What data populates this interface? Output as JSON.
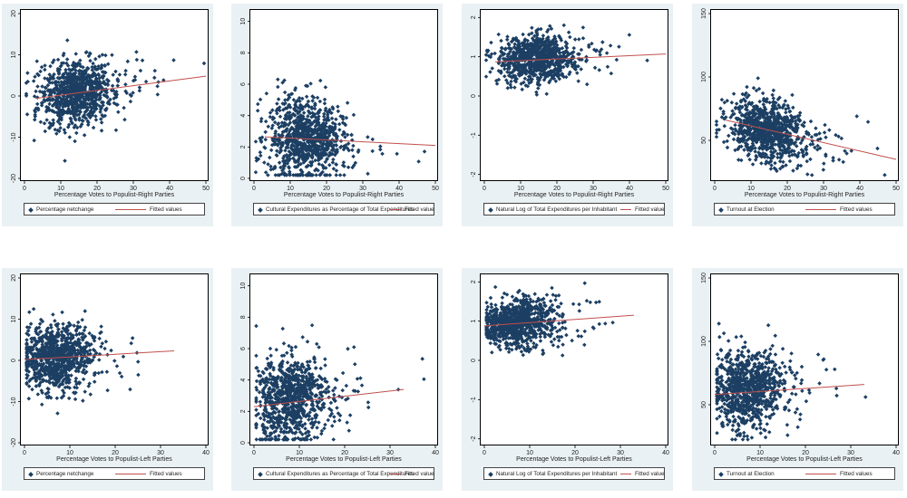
{
  "colors": {
    "marker": "#1c3f63",
    "fit": "#c0504d",
    "panel_bg": "#eaf1f4"
  },
  "chart_data": [
    {
      "type": "scatter",
      "xlabel": "Percentage Votes to Populist-Right Parties",
      "x_ticks": [
        0,
        10,
        20,
        30,
        40,
        50
      ],
      "xlim": [
        0,
        50
      ],
      "y_ticks": [
        -20,
        -10,
        0,
        10,
        20
      ],
      "ylim": [
        -20,
        20
      ],
      "cloud": {
        "x_mean": 14,
        "x_sd": 5,
        "y_sd": 4
      },
      "series": [
        {
          "name": "Percentage netchange",
          "kind": "points"
        },
        {
          "name": "Fitted values",
          "kind": "line",
          "x": [
            3,
            50
          ],
          "y": [
            -0.6,
            4.8
          ]
        }
      ]
    },
    {
      "type": "scatter",
      "xlabel": "Percentage Votes to Populist-Right Parties",
      "x_ticks": [
        0,
        10,
        20,
        30,
        40,
        50
      ],
      "xlim": [
        0,
        50
      ],
      "y_ticks": [
        0,
        2,
        4,
        6,
        8,
        10
      ],
      "ylim": [
        0,
        10.5
      ],
      "cloud": {
        "x_mean": 14,
        "x_sd": 5,
        "y_mean": 2.5,
        "y_sd": 1.3
      },
      "series": [
        {
          "name": "Cultural Expenditures as Percentage of Total Expenditures",
          "kind": "points"
        },
        {
          "name": "Fitted values",
          "kind": "line",
          "x": [
            3,
            50
          ],
          "y": [
            2.65,
            2.1
          ]
        }
      ]
    },
    {
      "type": "scatter",
      "xlabel": "Percentage Votes to Populist-Right Parties",
      "x_ticks": [
        0,
        10,
        20,
        30,
        40,
        50
      ],
      "xlim": [
        0,
        50
      ],
      "y_ticks": [
        -2,
        -1,
        0,
        1,
        2
      ],
      "ylim": [
        -2.1,
        2.1
      ],
      "cloud": {
        "x_mean": 14,
        "x_sd": 5,
        "y_mean": 0.95,
        "y_sd": 0.3
      },
      "series": [
        {
          "name": "Natural Log of Total Expenditures per Inhabitant",
          "kind": "points"
        },
        {
          "name": "Fitted values",
          "kind": "line",
          "x": [
            3,
            50
          ],
          "y": [
            0.87,
            1.07
          ]
        }
      ]
    },
    {
      "type": "scatter",
      "xlabel": "Percentage Votes to Populist-Right Parties",
      "x_ticks": [
        0,
        10,
        20,
        30,
        40,
        50
      ],
      "xlim": [
        0,
        50
      ],
      "y_ticks": [
        50,
        100,
        150
      ],
      "ylim": [
        20,
        150
      ],
      "cloud": {
        "x_mean": 14,
        "x_sd": 5,
        "y_mean": 58,
        "y_sd": 12
      },
      "series": [
        {
          "name": "Turnout at Election",
          "kind": "points"
        },
        {
          "name": "Fitted values",
          "kind": "line",
          "x": [
            3,
            50
          ],
          "y": [
            66,
            35
          ]
        }
      ]
    },
    {
      "type": "scatter",
      "xlabel": "Percentage Votes to Populist-Left Parties",
      "x_ticks": [
        0,
        10,
        20,
        30,
        40
      ],
      "xlim": [
        0,
        40
      ],
      "y_ticks": [
        -20,
        -10,
        0,
        10,
        20
      ],
      "ylim": [
        -20,
        20
      ],
      "cloud": {
        "x_mean": 7,
        "x_sd": 4,
        "y_sd": 4
      },
      "series": [
        {
          "name": "Percentage netchange",
          "kind": "points"
        },
        {
          "name": "Fitted values",
          "kind": "line",
          "x": [
            0,
            33
          ],
          "y": [
            0.2,
            2.3
          ]
        }
      ]
    },
    {
      "type": "scatter",
      "xlabel": "Percentage Votes to Populist-Left Parties",
      "x_ticks": [
        0,
        10,
        20,
        30,
        40
      ],
      "xlim": [
        0,
        40
      ],
      "y_ticks": [
        0,
        2,
        4,
        6,
        8,
        10
      ],
      "ylim": [
        0,
        10.5
      ],
      "cloud": {
        "x_mean": 8,
        "x_sd": 4,
        "y_mean": 2.7,
        "y_sd": 1.4
      },
      "series": [
        {
          "name": "Cultural Expenditures as Percentage of Total Expenditures",
          "kind": "points"
        },
        {
          "name": "Fitted values",
          "kind": "line",
          "x": [
            0,
            33
          ],
          "y": [
            2.3,
            3.4
          ]
        }
      ]
    },
    {
      "type": "scatter",
      "xlabel": "Percentage Votes to Populist-Left Parties",
      "x_ticks": [
        0,
        10,
        20,
        30,
        40
      ],
      "xlim": [
        0,
        40
      ],
      "y_ticks": [
        -2,
        -1,
        0,
        1,
        2
      ],
      "ylim": [
        -2.1,
        2.1
      ],
      "cloud": {
        "x_mean": 7,
        "x_sd": 4,
        "y_mean": 0.95,
        "y_sd": 0.3
      },
      "series": [
        {
          "name": "Natural Log of Total Expenditures per Inhabitant",
          "kind": "points"
        },
        {
          "name": "Fitted values",
          "kind": "line",
          "x": [
            0,
            33
          ],
          "y": [
            0.88,
            1.15
          ]
        }
      ]
    },
    {
      "type": "scatter",
      "xlabel": "Percentage Votes to Populist-Left Parties",
      "x_ticks": [
        0,
        10,
        20,
        30,
        40
      ],
      "xlim": [
        0,
        40
      ],
      "y_ticks": [
        50,
        100,
        150
      ],
      "ylim": [
        20,
        150
      ],
      "cloud": {
        "x_mean": 7,
        "x_sd": 4,
        "y_mean": 62,
        "y_sd": 15
      },
      "series": [
        {
          "name": "Turnout at Election",
          "kind": "points"
        },
        {
          "name": "Fitted values",
          "kind": "line",
          "x": [
            0,
            33
          ],
          "y": [
            58,
            66
          ]
        }
      ]
    }
  ]
}
